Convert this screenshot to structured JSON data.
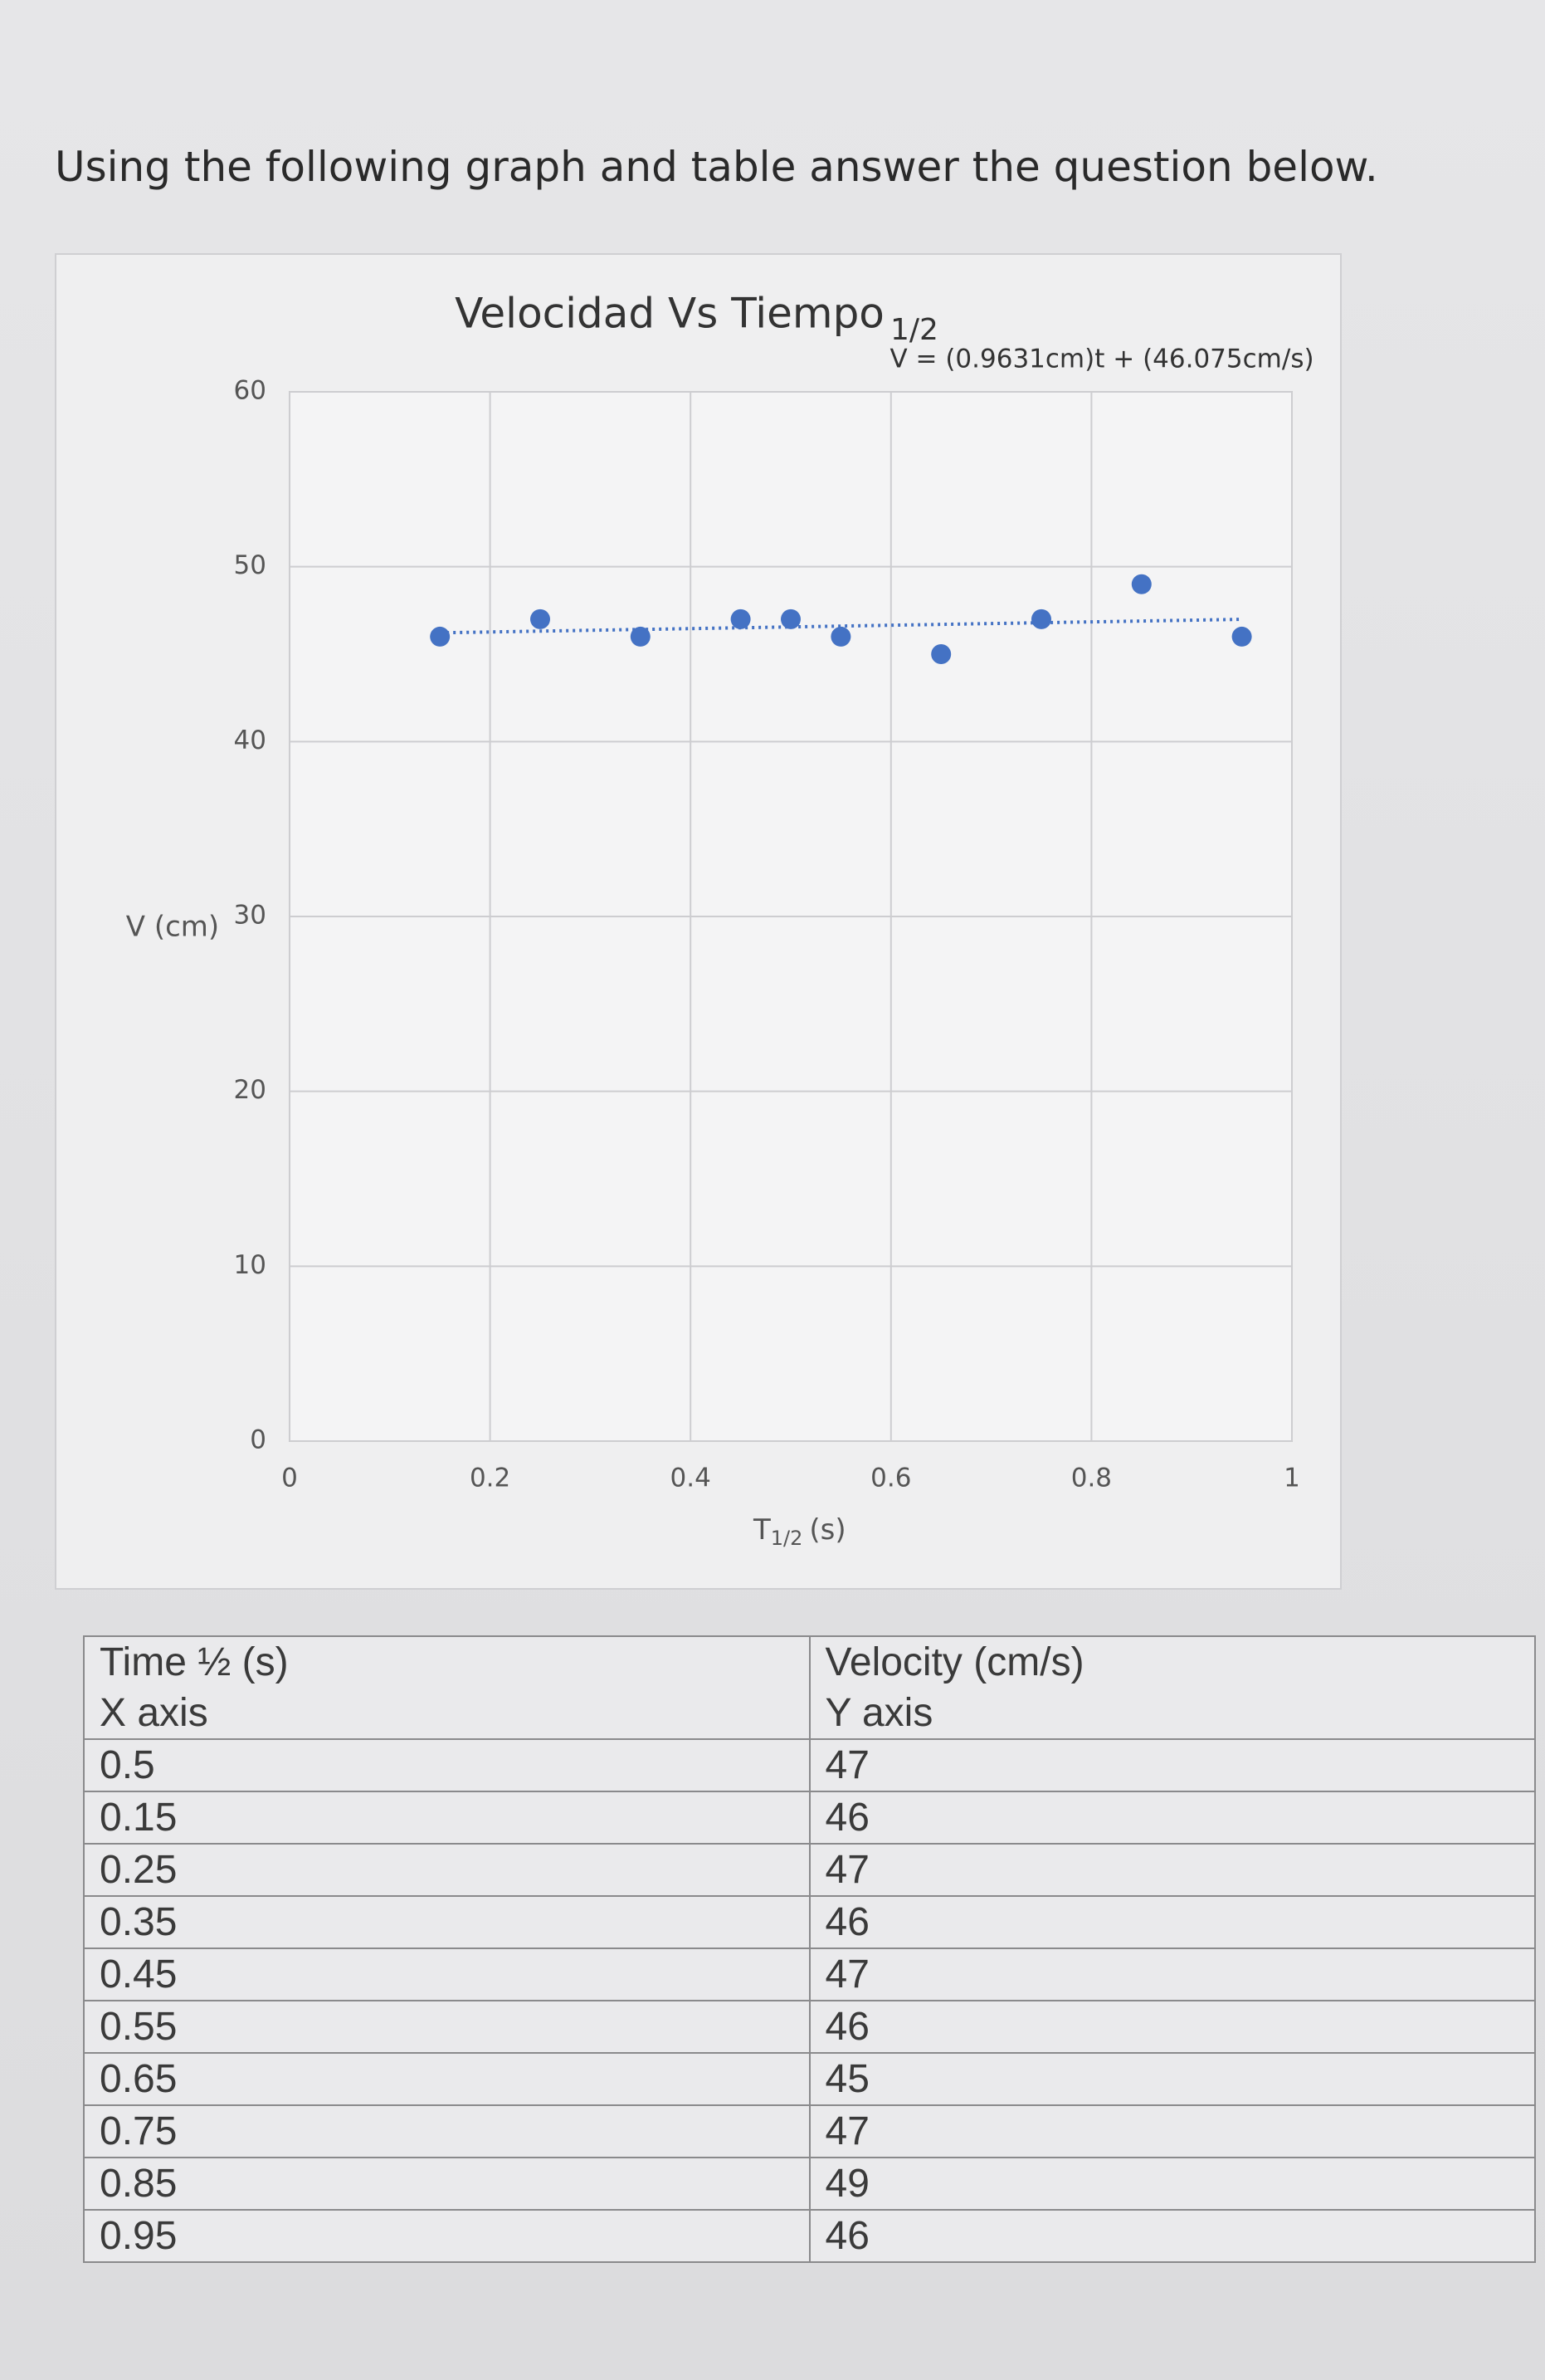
{
  "heading": "Using the following graph and table answer the question below.",
  "chart_data": {
    "type": "scatter",
    "title": "Velocidad Vs Tiempo",
    "title_sub": "1/2",
    "annotation": "V = (0.9631cm)t + (46.075cm/s)",
    "y_label": "V (cm)",
    "x_label": {
      "main": "T",
      "sub": "1/2",
      "unit": "(s)"
    },
    "x": [
      0.15,
      0.25,
      0.35,
      0.45,
      0.5,
      0.55,
      0.65,
      0.75,
      0.85,
      0.95
    ],
    "values": [
      46,
      47,
      46,
      47,
      47,
      46,
      45,
      47,
      49,
      46
    ],
    "color": "#4472c4",
    "xlim": [
      0,
      1
    ],
    "xticks": [
      0,
      0.2,
      0.4,
      0.6,
      0.8,
      1
    ],
    "ylim": [
      0,
      60
    ],
    "yticks": [
      0,
      10,
      20,
      30,
      40,
      50,
      60
    ],
    "grid": true,
    "trendline": true
  },
  "table": {
    "header": [
      [
        "Time ½ (s)",
        "Velocity (cm/s)"
      ],
      [
        "X axis",
        "Y axis"
      ]
    ],
    "rows": [
      [
        "0.5",
        "47"
      ],
      [
        "0.15",
        "46"
      ],
      [
        "0.25",
        "47"
      ],
      [
        "0.35",
        "46"
      ],
      [
        "0.45",
        "47"
      ],
      [
        "0.55",
        "46"
      ],
      [
        "0.65",
        "45"
      ],
      [
        "0.75",
        "47"
      ],
      [
        "0.85",
        "49"
      ],
      [
        "0.95",
        "46"
      ]
    ]
  }
}
